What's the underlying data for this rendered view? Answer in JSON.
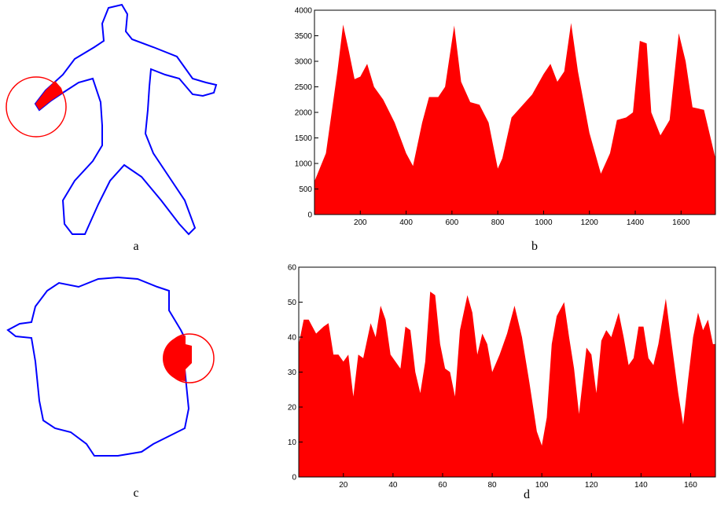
{
  "panels": [
    {
      "label": "a"
    },
    {
      "label": "c"
    }
  ],
  "chart_data": [
    {
      "type": "area",
      "label": "b",
      "color": "#ff0000",
      "x": [
        0,
        50,
        100,
        125,
        150,
        175,
        200,
        230,
        260,
        300,
        350,
        400,
        430,
        470,
        500,
        540,
        570,
        610,
        640,
        680,
        720,
        760,
        800,
        820,
        860,
        900,
        950,
        1000,
        1030,
        1060,
        1090,
        1120,
        1150,
        1200,
        1250,
        1290,
        1320,
        1360,
        1390,
        1420,
        1450,
        1470,
        1510,
        1550,
        1590,
        1620,
        1650,
        1700,
        1750
      ],
      "values": [
        650,
        1200,
        2800,
        3720,
        3200,
        2650,
        2700,
        2950,
        2500,
        2250,
        1800,
        1200,
        950,
        1800,
        2300,
        2300,
        2500,
        3700,
        2600,
        2200,
        2150,
        1800,
        900,
        1100,
        1900,
        2100,
        2350,
        2750,
        2950,
        2600,
        2800,
        3750,
        2800,
        1600,
        800,
        1200,
        1850,
        1900,
        2000,
        3400,
        3350,
        2000,
        1550,
        1850,
        3550,
        3000,
        2100,
        2050,
        1100
      ],
      "xlim": [
        0,
        1750
      ],
      "ylim": [
        0,
        4000
      ],
      "xticks": [
        200,
        400,
        600,
        800,
        1000,
        1200,
        1400,
        1600
      ],
      "yticks": [
        0,
        500,
        1000,
        1500,
        2000,
        2500,
        3000,
        3500,
        4000
      ]
    },
    {
      "type": "area",
      "label": "d",
      "color": "#ff0000",
      "x": [
        2,
        4,
        6,
        9,
        12,
        14,
        16,
        18,
        20,
        22,
        24,
        26,
        28,
        31,
        33,
        35,
        37,
        39,
        41,
        43,
        45,
        47,
        49,
        51,
        53,
        55,
        57,
        59,
        61,
        63,
        65,
        67,
        70,
        72,
        74,
        76,
        78,
        80,
        83,
        86,
        89,
        92,
        95,
        98,
        100,
        102,
        104,
        106,
        109,
        111,
        113,
        115,
        118,
        120,
        122,
        124,
        126,
        128,
        131,
        133,
        135,
        137,
        139,
        141,
        143,
        145,
        147,
        150,
        152,
        155,
        157,
        159,
        161,
        163,
        165,
        167,
        169,
        170
      ],
      "values": [
        38,
        45,
        45,
        41,
        43,
        44,
        35,
        35,
        33,
        35,
        23,
        35,
        34,
        44,
        40,
        49,
        45,
        35,
        33,
        31,
        43,
        42,
        30,
        24,
        33,
        53,
        52,
        38,
        31,
        30,
        23,
        42,
        52,
        47,
        35,
        41,
        38,
        30,
        35,
        41,
        49,
        40,
        27,
        13,
        9,
        17,
        38,
        46,
        50,
        40,
        31,
        18,
        37,
        35,
        24,
        39,
        42,
        40,
        47,
        40,
        32,
        34,
        43,
        43,
        34,
        32,
        38,
        51,
        40,
        24,
        15,
        28,
        40,
        47,
        42,
        45,
        38,
        38
      ],
      "xlim": [
        2,
        170
      ],
      "ylim": [
        0,
        60
      ],
      "xticks": [
        20,
        40,
        60,
        80,
        100,
        120,
        140,
        160
      ],
      "yticks": [
        0,
        10,
        20,
        30,
        40,
        50,
        60
      ]
    }
  ]
}
